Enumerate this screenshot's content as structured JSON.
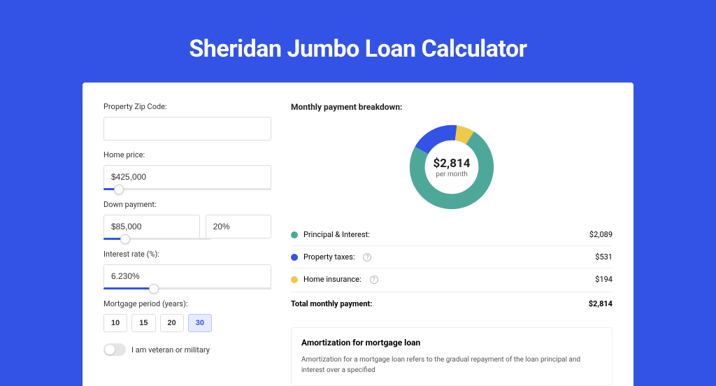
{
  "colors": {
    "page_bg": "#3353e6",
    "panel_bg": "#ffffff",
    "accent": "#3353e6",
    "accent_light": "#e6ecff",
    "border": "#dddddd",
    "text": "#333333",
    "muted": "#666666"
  },
  "page": {
    "title": "Sheridan Jumbo Loan Calculator"
  },
  "form": {
    "zip": {
      "label": "Property Zip Code:",
      "value": ""
    },
    "price": {
      "label": "Home price:",
      "value": "$425,000",
      "slider_pct": 9
    },
    "down": {
      "label": "Down payment:",
      "value": "$85,000",
      "pct_value": "20%",
      "slider_pct": 20
    },
    "rate": {
      "label": "Interest rate (%):",
      "value": "6.230%",
      "slider_pct": 30
    },
    "period": {
      "label": "Mortgage period (years):",
      "options": [
        "10",
        "15",
        "20",
        "30"
      ],
      "active": "30"
    },
    "veteran": {
      "label": "I am veteran or military",
      "checked": false
    }
  },
  "breakdown": {
    "title": "Monthly payment breakdown:",
    "donut": {
      "amount": "$2,814",
      "sub": "per month",
      "segments": [
        {
          "label": "Principal & Interest:",
          "value": "$2,089",
          "numeric": 2089,
          "color": "#4da89a",
          "info": false
        },
        {
          "label": "Property taxes:",
          "value": "$531",
          "numeric": 531,
          "color": "#3353e6",
          "info": true
        },
        {
          "label": "Home insurance:",
          "value": "$194",
          "numeric": 194,
          "color": "#f0c84a",
          "info": true
        }
      ],
      "total_label": "Total monthly payment:",
      "total_value": "$2,814",
      "total_numeric": 2814
    }
  },
  "amortization": {
    "title": "Amortization for mortgage loan",
    "text": "Amortization for a mortgage loan refers to the gradual repayment of the loan principal and interest over a specified"
  }
}
